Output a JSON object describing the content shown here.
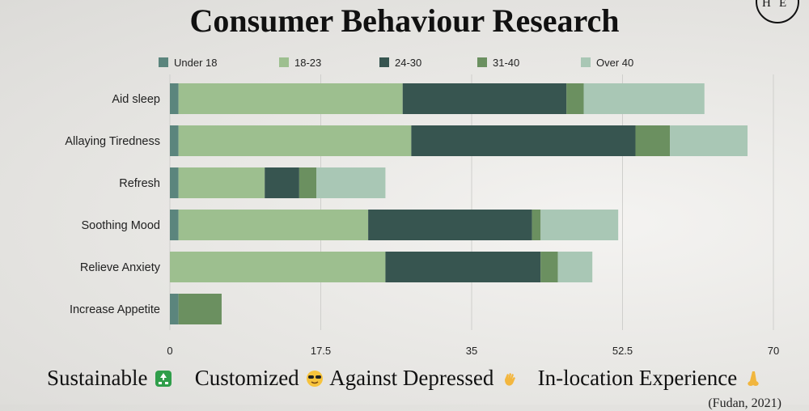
{
  "slide": {
    "title": "Consumer Behaviour Research",
    "logo_text": "HE",
    "footer_items": [
      "Sustainable",
      "Customized",
      "Against Depressed",
      "In-location Experience"
    ],
    "citation": "(Fudan, 2021)"
  },
  "colors": {
    "under18": "#5b857d",
    "18-23": "#9dbf8f",
    "24-30": "#375550",
    "31-40": "#6b9060",
    "over40": "#a9c7b5"
  },
  "chart_data": {
    "type": "bar",
    "orientation": "horizontal",
    "stacked": true,
    "categories": [
      "Aid sleep",
      "Allaying Tiredness",
      "Refresh",
      "Soothing Mood",
      "Relieve Anxiety",
      "Increase Appetite"
    ],
    "series": [
      {
        "name": "Under 18",
        "color": "#5b857d",
        "values": [
          1,
          1,
          1,
          1,
          0,
          1
        ]
      },
      {
        "name": "18-23",
        "color": "#9dbf8f",
        "values": [
          26,
          27,
          10,
          22,
          25,
          0
        ]
      },
      {
        "name": "24-30",
        "color": "#375550",
        "values": [
          19,
          26,
          4,
          19,
          18,
          0
        ]
      },
      {
        "name": "31-40",
        "color": "#6b9060",
        "values": [
          2,
          4,
          2,
          1,
          2,
          5
        ]
      },
      {
        "name": "Over 40",
        "color": "#a9c7b5",
        "values": [
          14,
          9,
          8,
          9,
          4,
          0
        ]
      }
    ],
    "xlim": [
      0,
      70
    ],
    "xticks": [
      "0",
      "17.5",
      "35",
      "52.5",
      "70"
    ],
    "grid": true,
    "legend_position": "top"
  }
}
